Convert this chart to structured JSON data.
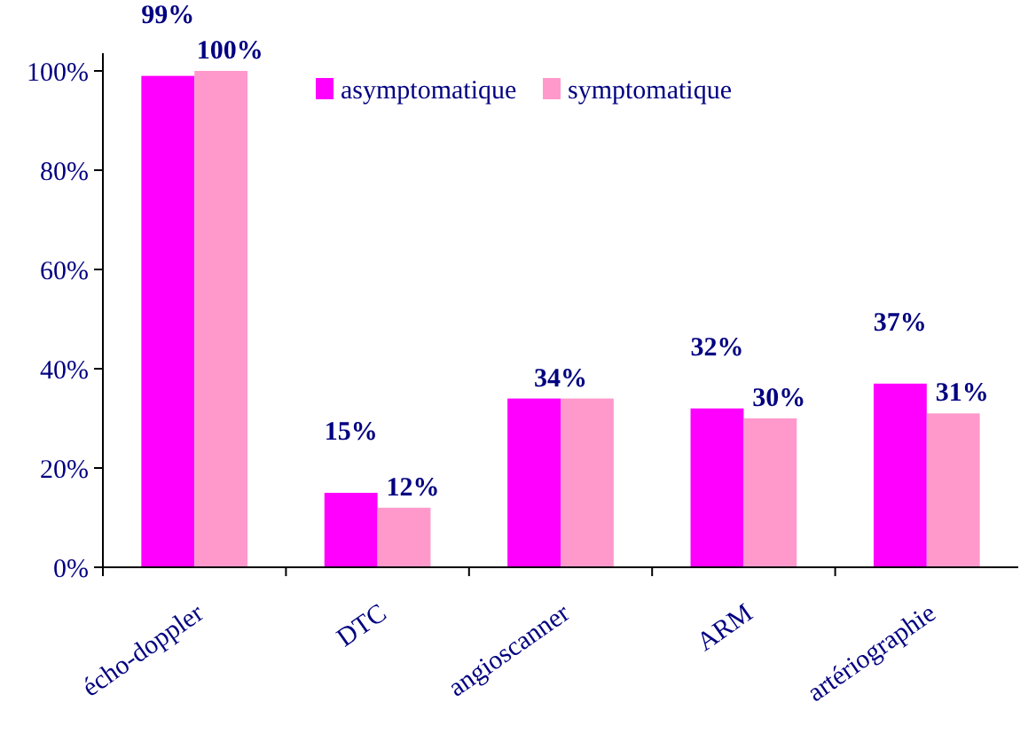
{
  "chart_data": {
    "type": "bar",
    "categories": [
      "écho-doppler",
      "DTC",
      "angioscanner",
      "ARM",
      "artériographie"
    ],
    "series": [
      {
        "name": "asymptomatique",
        "color": "#ff00ff",
        "values": [
          99,
          15,
          34,
          32,
          37
        ],
        "value_labels": [
          "99%",
          "15%",
          "34%",
          "32%",
          "37%"
        ]
      },
      {
        "name": "symptomatique",
        "color": "#ff99cc",
        "values": [
          100,
          12,
          34,
          30,
          31
        ],
        "value_labels": [
          "100%",
          "12%",
          null,
          "30%",
          "31%"
        ]
      }
    ],
    "ylim": [
      0,
      100
    ],
    "yticks": [
      {
        "value": 0,
        "label": "0%"
      },
      {
        "value": 20,
        "label": "20%"
      },
      {
        "value": 40,
        "label": "40%"
      },
      {
        "value": 60,
        "label": "60%"
      },
      {
        "value": 80,
        "label": "80%"
      },
      {
        "value": 100,
        "label": "100%"
      }
    ],
    "grid": false,
    "legend": "top right"
  }
}
